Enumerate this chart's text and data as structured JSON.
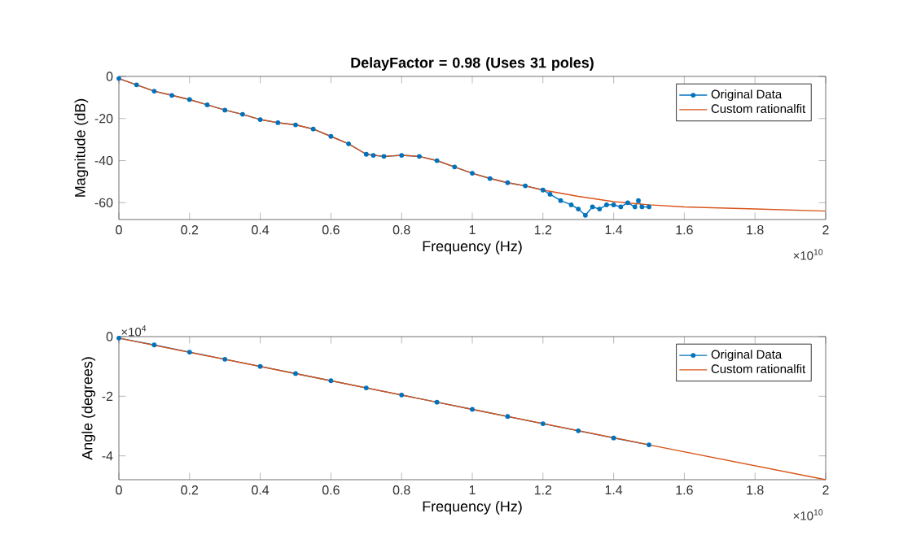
{
  "chart_data": [
    {
      "type": "line",
      "title": "DelayFactor = 0.98 (Uses 31 poles)",
      "xlabel": "Frequency (Hz)",
      "ylabel": "Magnitude (dB)",
      "xlim": [
        0,
        2
      ],
      "ylim": [
        -68,
        0
      ],
      "xticks": [
        0,
        0.2,
        0.4,
        0.6,
        0.8,
        1,
        1.2,
        1.4,
        1.6,
        1.8,
        2
      ],
      "yticks": [
        -60,
        -40,
        -20,
        0
      ],
      "legend": "top right",
      "annotations": [
        "×10$^{10}$"
      ],
      "series": [
        {
          "name": "Original Data",
          "color": "#0072bd",
          "marker": "circle",
          "x": [
            0,
            0.05,
            0.1,
            0.15,
            0.2,
            0.25,
            0.3,
            0.35,
            0.4,
            0.45,
            0.5,
            0.55,
            0.6,
            0.65,
            0.7,
            0.72,
            0.75,
            0.8,
            0.85,
            0.9,
            0.95,
            1,
            1.05,
            1.1,
            1.15,
            1.2,
            1.22,
            1.25,
            1.28,
            1.3,
            1.32,
            1.34,
            1.36,
            1.38,
            1.4,
            1.42,
            1.44,
            1.46,
            1.47,
            1.48,
            1.5
          ],
          "values": [
            -1,
            -4,
            -7,
            -9,
            -11,
            -13.5,
            -16,
            -18,
            -20.5,
            -22,
            -23,
            -25,
            -28.5,
            -32,
            -37,
            -37.5,
            -38,
            -37.5,
            -38,
            -40,
            -43,
            -46,
            -48.5,
            -50.5,
            -52,
            -54,
            -56,
            -59,
            -61,
            -63,
            -66,
            -62,
            -63,
            -61,
            -61,
            -62,
            -60,
            -62,
            -59,
            -62,
            -62
          ]
        },
        {
          "name": "Custom rationalfit",
          "color": "#d95319",
          "marker": "none",
          "x": [
            0,
            0.05,
            0.1,
            0.15,
            0.2,
            0.25,
            0.3,
            0.35,
            0.4,
            0.45,
            0.5,
            0.55,
            0.6,
            0.65,
            0.7,
            0.75,
            0.8,
            0.85,
            0.9,
            0.95,
            1,
            1.05,
            1.1,
            1.15,
            1.2,
            1.3,
            1.4,
            1.5,
            1.6,
            1.8,
            2
          ],
          "values": [
            -1,
            -4,
            -7,
            -9,
            -11,
            -13.5,
            -16,
            -18,
            -20.5,
            -22,
            -23,
            -25,
            -28.5,
            -32,
            -37,
            -38,
            -37.5,
            -38,
            -40,
            -43,
            -46,
            -48.5,
            -50.5,
            -52,
            -54,
            -57,
            -59.5,
            -61,
            -62,
            -63,
            -64
          ]
        }
      ]
    },
    {
      "type": "line",
      "xlabel": "Frequency (Hz)",
      "ylabel": "Angle (degrees)",
      "xlim": [
        0,
        2
      ],
      "ylim": [
        -4.8,
        0
      ],
      "xticks": [
        0,
        0.2,
        0.4,
        0.6,
        0.8,
        1,
        1.2,
        1.4,
        1.6,
        1.8,
        2
      ],
      "yticks": [
        -4,
        -2,
        0
      ],
      "legend": "top right",
      "annotations": [
        "×10$^{10}$",
        "×10$^{4}$"
      ],
      "series": [
        {
          "name": "Original Data",
          "color": "#0072bd",
          "marker": "circle",
          "x": [
            0,
            0.1,
            0.2,
            0.3,
            0.4,
            0.5,
            0.6,
            0.7,
            0.8,
            0.9,
            1,
            1.1,
            1.2,
            1.3,
            1.4,
            1.5
          ],
          "values": [
            -0.05,
            -0.28,
            -0.52,
            -0.76,
            -1.0,
            -1.24,
            -1.48,
            -1.72,
            -1.96,
            -2.2,
            -2.44,
            -2.68,
            -2.92,
            -3.16,
            -3.4,
            -3.63
          ]
        },
        {
          "name": "Custom rationalfit",
          "color": "#d95319",
          "marker": "none",
          "x": [
            0,
            0.5,
            1,
            1.5,
            2
          ],
          "values": [
            -0.05,
            -1.24,
            -2.44,
            -3.63,
            -4.8
          ]
        }
      ]
    }
  ]
}
